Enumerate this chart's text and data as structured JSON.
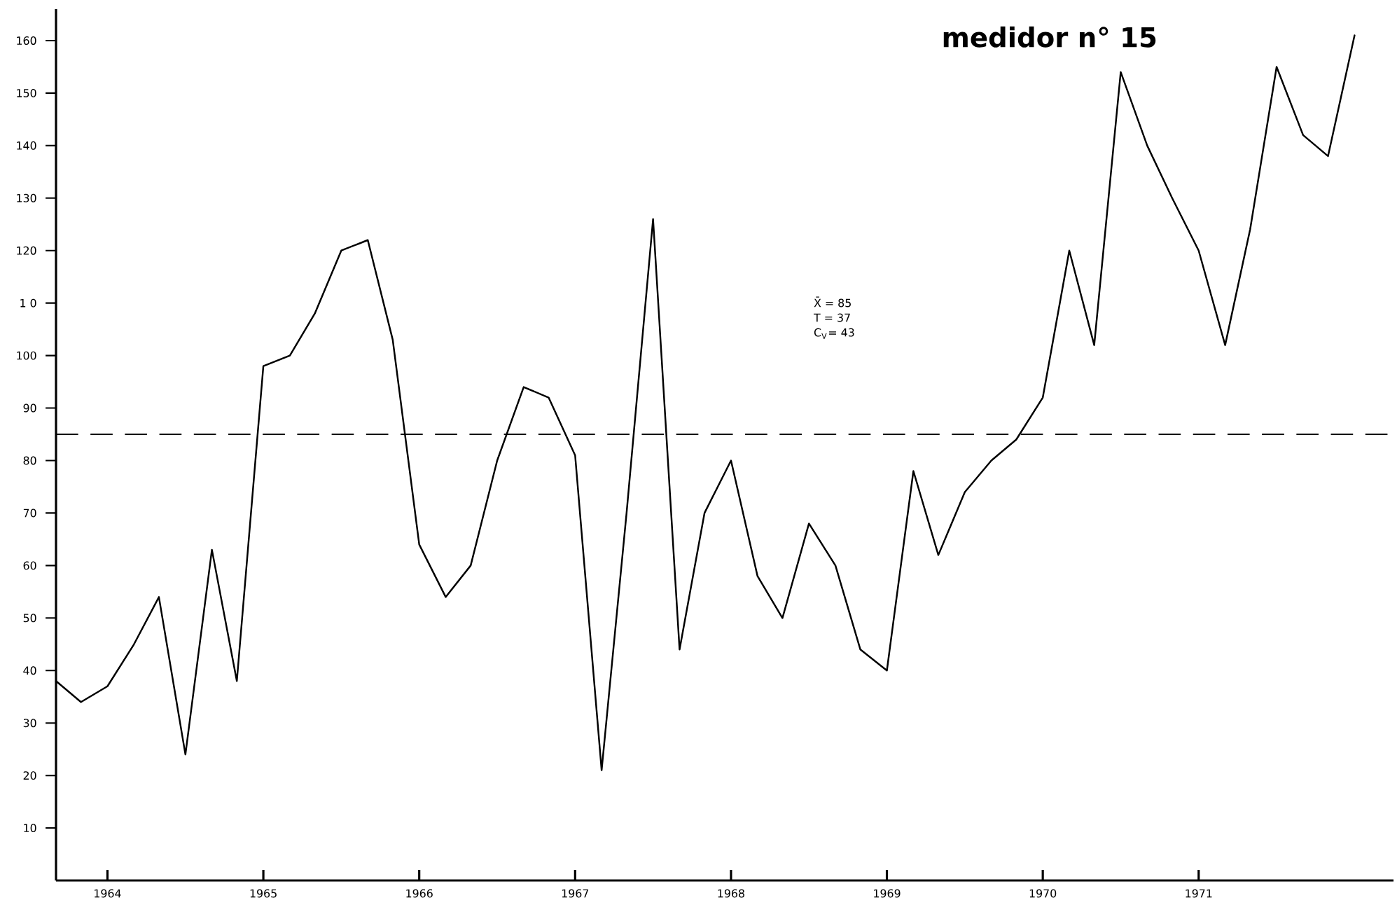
{
  "chart_data": {
    "type": "line",
    "title": "medidor n° 15",
    "x": [
      1963.67,
      1963.83,
      1964.0,
      1964.17,
      1964.33,
      1964.5,
      1964.67,
      1964.83,
      1965.0,
      1965.17,
      1965.33,
      1965.5,
      1965.67,
      1965.83,
      1966.0,
      1966.17,
      1966.33,
      1966.5,
      1966.67,
      1966.83,
      1967.0,
      1967.17,
      1967.33,
      1967.5,
      1967.67,
      1967.83,
      1968.0,
      1968.17,
      1968.33,
      1968.5,
      1968.67,
      1968.83,
      1969.0,
      1969.17,
      1969.33,
      1969.5,
      1969.67,
      1969.83,
      1970.0,
      1970.17,
      1970.33,
      1970.5,
      1970.67,
      1970.83,
      1971.0,
      1971.17,
      1971.33,
      1971.5,
      1971.67,
      1971.83,
      1972.0
    ],
    "series": [
      {
        "color": "#000000",
        "values": [
          38,
          34,
          37,
          45,
          54,
          24,
          63,
          38,
          98,
          100,
          108,
          120,
          122,
          103,
          64,
          54,
          60,
          80,
          94,
          92,
          81,
          21,
          70,
          126,
          44,
          70,
          80,
          58,
          50,
          68,
          60,
          44,
          40,
          78,
          62,
          74,
          80,
          84,
          92,
          120,
          102,
          154,
          140,
          130,
          120,
          102,
          124,
          155,
          142,
          138,
          161
        ]
      }
    ],
    "xlim": [
      1963.67,
      1972.25
    ],
    "ylim": [
      0,
      166
    ],
    "xticks": [
      1964,
      1965,
      1966,
      1967,
      1968,
      1969,
      1970,
      1971
    ],
    "yticks": [
      10,
      20,
      30,
      40,
      50,
      60,
      70,
      80,
      90,
      100,
      {
        "value": 110,
        "label": "1 0"
      },
      120,
      130,
      140,
      150,
      160
    ],
    "ref_lines": [
      {
        "axis": "y",
        "value": 85,
        "line_style": "dashed"
      }
    ],
    "annotations": [
      "X̄ = 85",
      "T = 37",
      "C$_{V}$= 43"
    ],
    "line_style": "solid",
    "marker": "none",
    "grid": false
  }
}
